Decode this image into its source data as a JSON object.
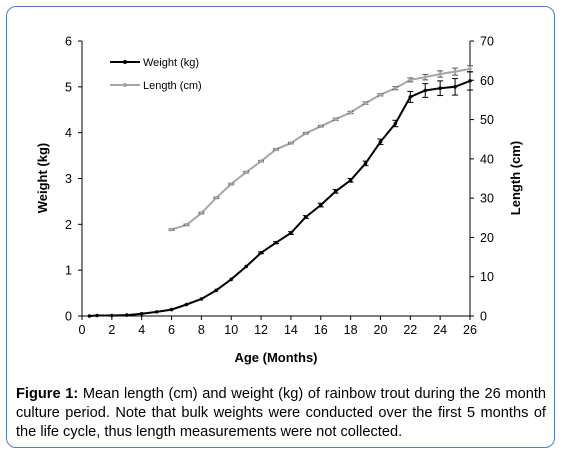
{
  "chart_data": {
    "type": "line",
    "xlabel": "Age (Months)",
    "ylabel_left": "Weight (kg)",
    "ylabel_right": "Length (cm)",
    "xlim": [
      0,
      26
    ],
    "xticks": [
      0,
      2,
      4,
      6,
      8,
      10,
      12,
      14,
      16,
      18,
      20,
      22,
      24,
      26
    ],
    "ylim_left": [
      0,
      6
    ],
    "yticks_left": [
      0,
      1,
      2,
      3,
      4,
      5,
      6
    ],
    "ylim_right": [
      0,
      70
    ],
    "yticks_right": [
      0,
      10,
      20,
      30,
      40,
      50,
      60,
      70
    ],
    "legend_position": "top-left",
    "grid": false,
    "series": [
      {
        "name": "Weight (kg)",
        "axis": "left",
        "color": "#000000",
        "x": [
          0.5,
          1,
          2,
          3,
          4,
          5,
          6,
          7,
          8,
          9,
          10,
          11,
          12,
          13,
          14,
          15,
          16,
          17,
          18,
          19,
          20,
          21,
          22,
          23,
          24,
          25,
          26
        ],
        "values": [
          0.0,
          0.01,
          0.01,
          0.02,
          0.05,
          0.09,
          0.14,
          0.25,
          0.37,
          0.56,
          0.8,
          1.08,
          1.38,
          1.6,
          1.81,
          2.16,
          2.42,
          2.72,
          2.96,
          3.33,
          3.8,
          4.2,
          4.78,
          4.92,
          4.97,
          5.0,
          5.13
        ],
        "error": [
          0,
          0,
          0,
          0,
          0,
          0,
          0,
          0,
          0,
          0,
          0,
          0,
          0.02,
          0.02,
          0.03,
          0.03,
          0.04,
          0.04,
          0.04,
          0.05,
          0.06,
          0.07,
          0.12,
          0.15,
          0.16,
          0.18,
          0.2
        ]
      },
      {
        "name": "Length (cm)",
        "axis": "right",
        "color": "#a6a6a6",
        "x": [
          6,
          7,
          8,
          9,
          10,
          11,
          12,
          13,
          14,
          15,
          16,
          17,
          18,
          19,
          20,
          21,
          22,
          23,
          24,
          25,
          26
        ],
        "values": [
          22,
          23.2,
          26.2,
          30.1,
          33.6,
          36.6,
          39.4,
          42.4,
          44.0,
          46.5,
          48.3,
          50.1,
          51.8,
          54.2,
          56.3,
          58.0,
          60.1,
          60.8,
          61.6,
          62.2,
          62.9
        ],
        "error": [
          0.2,
          0.2,
          0.2,
          0.2,
          0.2,
          0.2,
          0.2,
          0.2,
          0.2,
          0.2,
          0.2,
          0.3,
          0.3,
          0.3,
          0.3,
          0.4,
          0.5,
          0.7,
          0.8,
          0.9,
          0.8
        ]
      }
    ]
  },
  "caption": {
    "label": "Figure 1:",
    "text": " Mean length (cm) and weight (kg) of rainbow trout during the 26 month culture period. Note that bulk weights were conducted over the first 5 months of the life cycle, thus length measurements were not collected."
  }
}
